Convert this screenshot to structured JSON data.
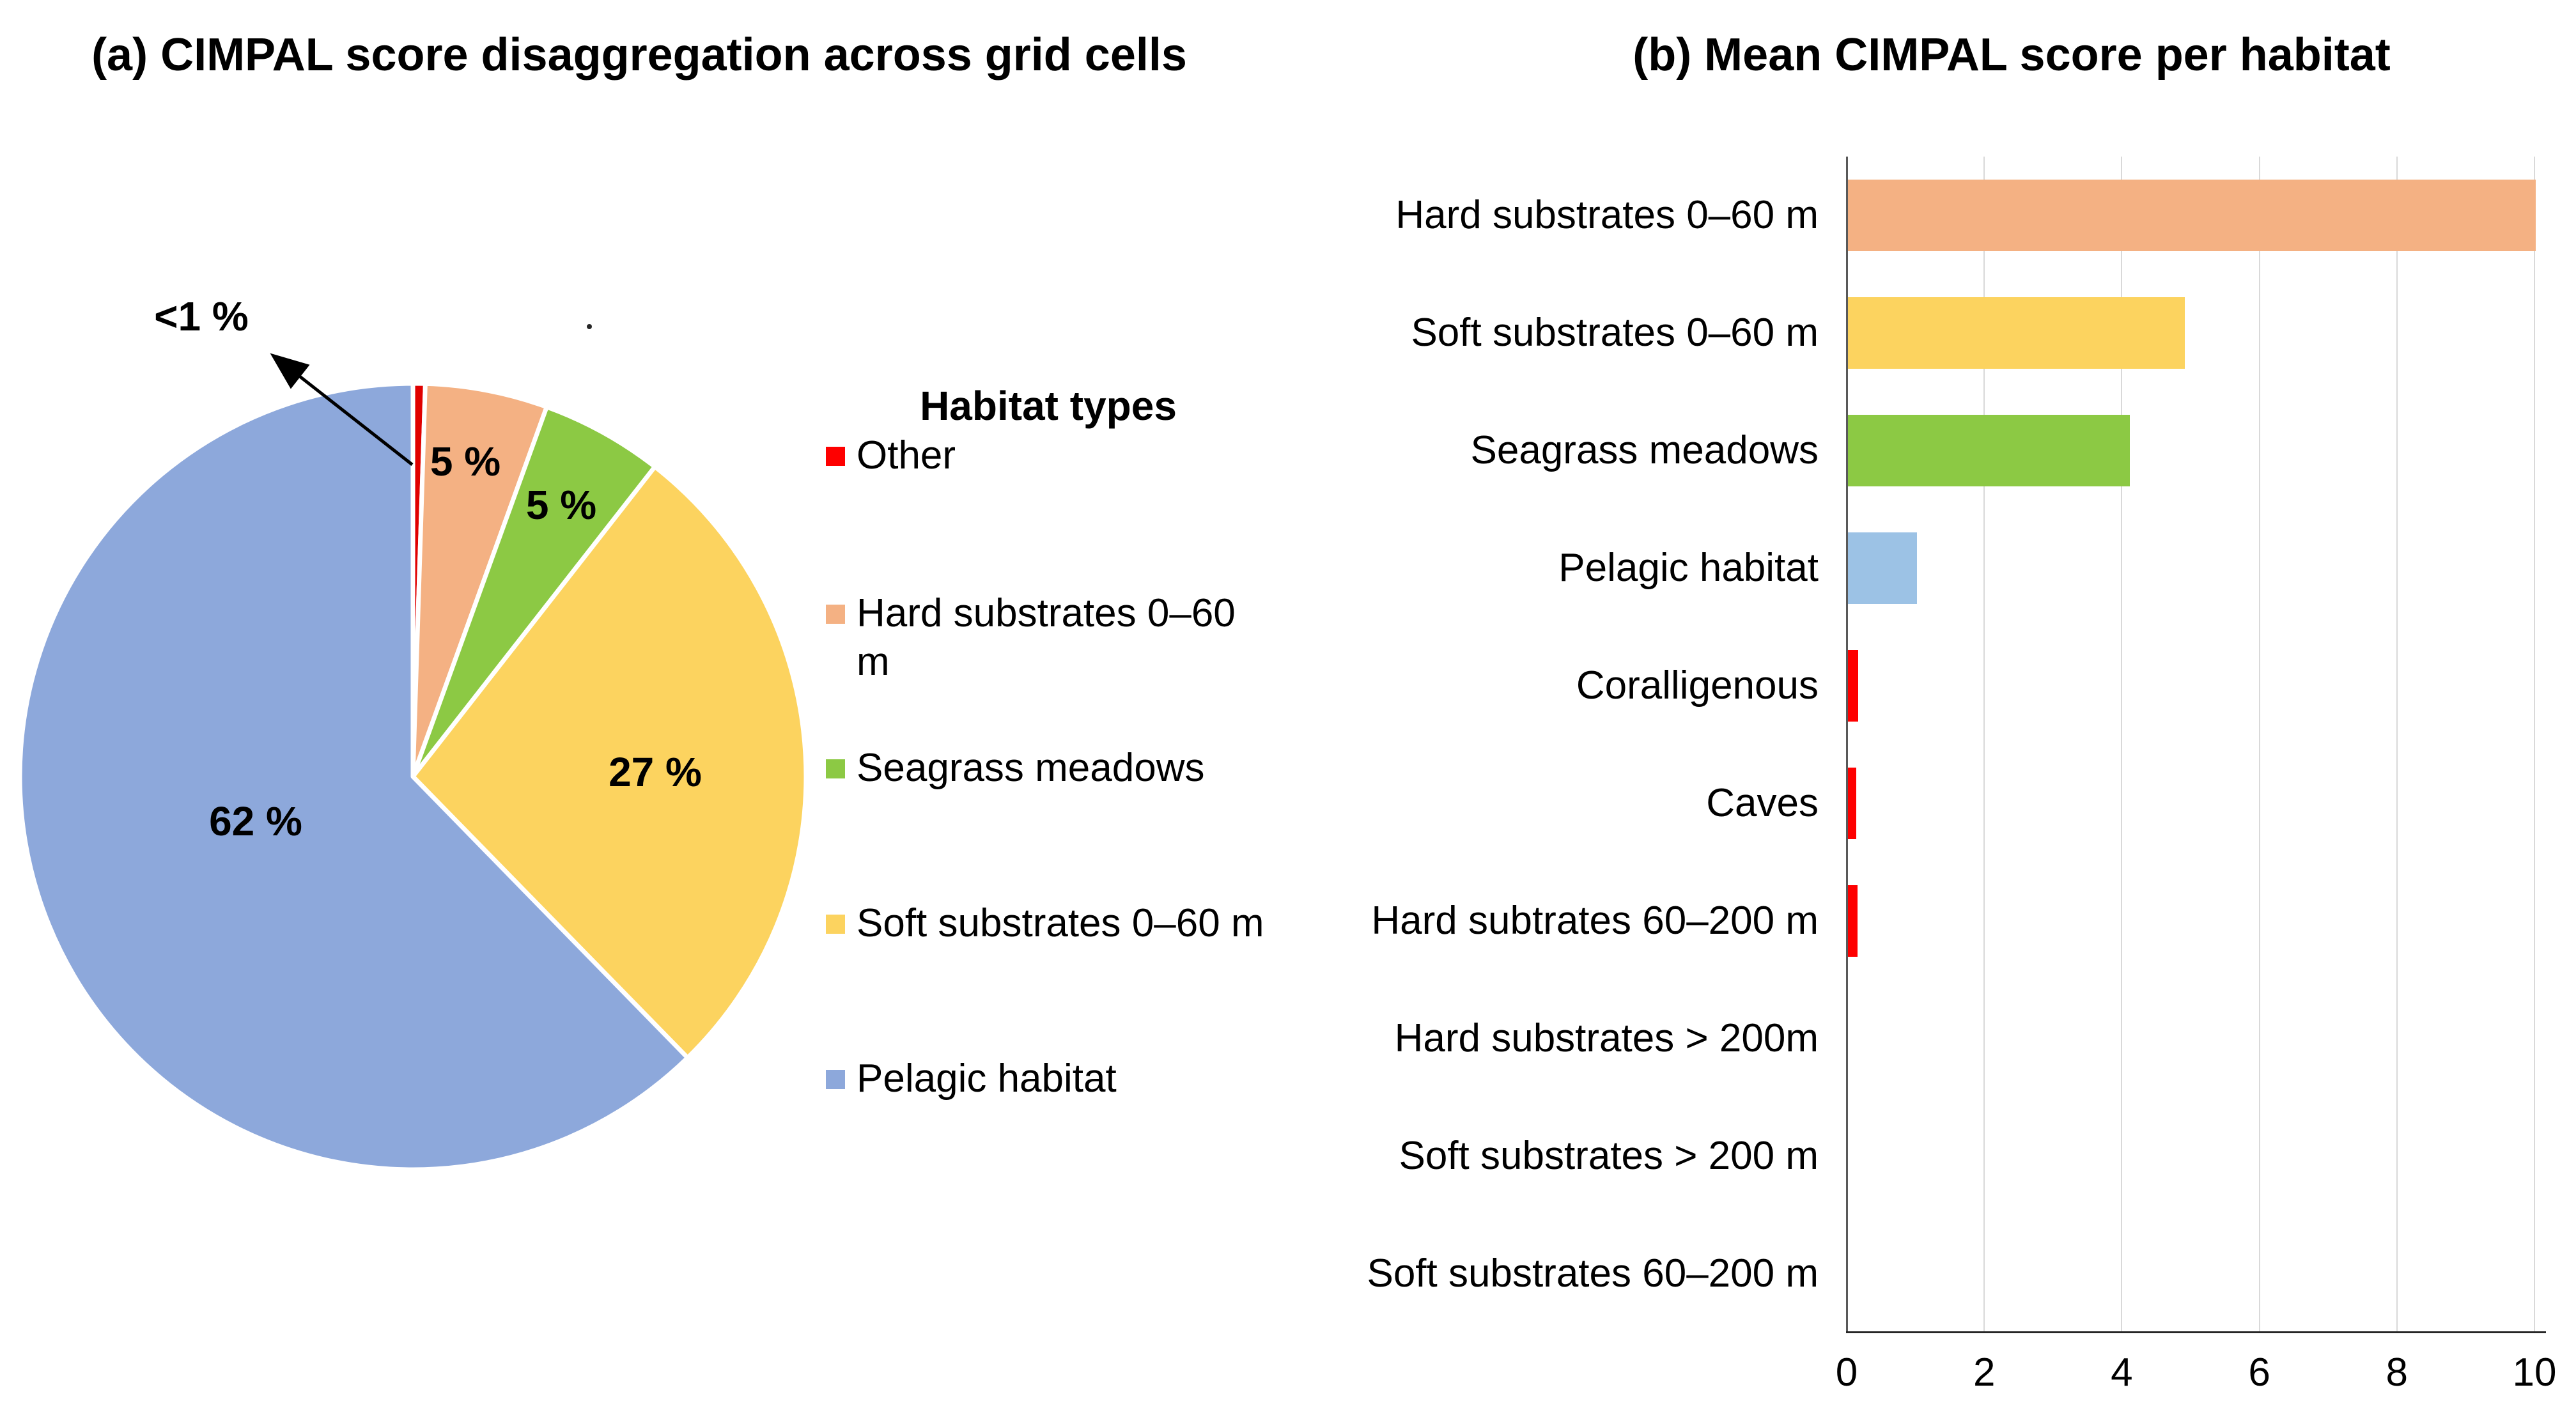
{
  "panel_a": {
    "title": "(a) CIMPAL score disaggregation across grid cells",
    "callout_label": "<1 %",
    "legend": {
      "title": "Habitat types",
      "items": [
        {
          "label": "Other",
          "color": "#FE0000"
        },
        {
          "label": "Hard substrates 0–60 m",
          "color": "#F4B183"
        },
        {
          "label": "Seagrass meadows",
          "color": "#8CC944"
        },
        {
          "label": "Soft substrates 0–60 m",
          "color": "#FCD35F"
        },
        {
          "label": "Pelagic habitat",
          "color": "#8DA8DB"
        }
      ]
    }
  },
  "panel_b": {
    "title": "(b) Mean CIMPAL score per habitat"
  },
  "chart_data": [
    {
      "type": "pie",
      "title": "(a) CIMPAL score disaggregation across grid cells",
      "legend_title": "Habitat types",
      "legend_position": "right",
      "rotation": "starts at 12 o'clock, clockwise",
      "slices": [
        {
          "label": "Other",
          "value": 0.5,
          "display_label": "<1 %",
          "color": "#E00000",
          "callout": true
        },
        {
          "label": "Hard substrates 0–60 m",
          "value": 5,
          "display_label": "5 %",
          "color": "#F4B183"
        },
        {
          "label": "Seagrass meadows",
          "value": 5,
          "display_label": "5 %",
          "color": "#8CC944"
        },
        {
          "label": "Soft substrates 0–60 m",
          "value": 27,
          "display_label": "27 %",
          "color": "#FCD35F"
        },
        {
          "label": "Pelagic habitat",
          "value": 62,
          "display_label": "62 %",
          "color": "#8DA8DB"
        }
      ]
    },
    {
      "type": "bar",
      "orientation": "horizontal",
      "title": "(b) Mean CIMPAL score per habitat",
      "categories": [
        "Hard substrates 0–60 m",
        "Soft substrates 0–60 m",
        "Seagrass meadows",
        "Pelagic habitat",
        "Coralligenous",
        "Caves",
        "Hard subtrates 60–200 m",
        "Hard substrates > 200m",
        "Soft substrates > 200 m",
        "Soft substrates 60–200 m"
      ],
      "values": [
        10,
        4.9,
        4.1,
        1.0,
        0.15,
        0.12,
        0.14,
        0,
        0,
        0
      ],
      "colors": [
        "#F4B183",
        "#FCD35F",
        "#8CC944",
        "#9CC2E5",
        "#FE0000",
        "#FE0000",
        "#FE0000",
        "#FE0000",
        "#FE0000",
        "#FE0000"
      ],
      "xlabel": "",
      "ylabel": "",
      "xlim": [
        0,
        10
      ],
      "xticks": [
        "0",
        "2",
        "4",
        "6",
        "8",
        "10"
      ],
      "grid": "vertical",
      "gridline_color": "#D9D9D9"
    }
  ]
}
